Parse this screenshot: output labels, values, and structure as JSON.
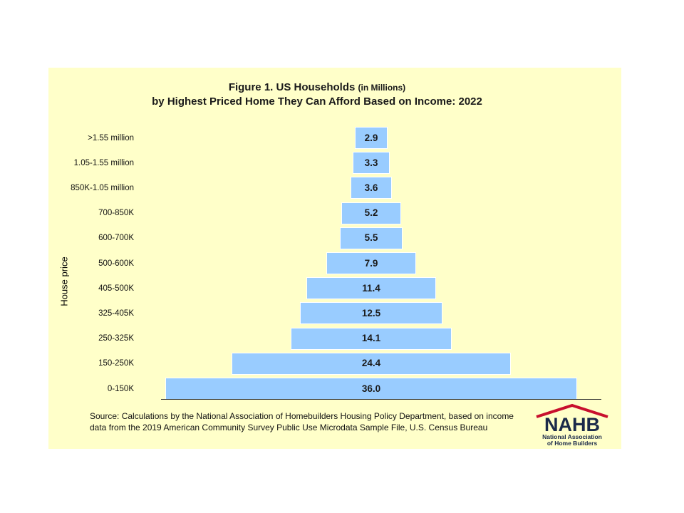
{
  "chart_data": {
    "type": "bar",
    "orientation": "horizontal-centered",
    "title": "Figure 1. US Households",
    "title_unit": "(in Millions)",
    "subtitle": "by Highest Priced Home They Can Afford Based on Income: 2022",
    "ylabel": "House price",
    "xlabel": "",
    "categories": [
      ">1.55 million",
      "1.05-1.55 million",
      "850K-1.05 million",
      "700-850K",
      "600-700K",
      "500-600K",
      "405-500K",
      "325-405K",
      "250-325K",
      "150-250K",
      "0-150K"
    ],
    "values": [
      2.9,
      3.3,
      3.6,
      5.2,
      5.5,
      7.9,
      11.4,
      12.5,
      14.1,
      24.4,
      36.0
    ],
    "value_labels": [
      "2.9",
      "3.3",
      "3.6",
      "5.2",
      "5.5",
      "7.9",
      "11.4",
      "12.5",
      "14.1",
      "24.4",
      "36.0"
    ],
    "bar_color": "#99ccff",
    "background_color": "#ffffc9",
    "grid": false,
    "legend": "none"
  },
  "source": "Source: Calculations by the National Association of Homebuilders Housing Policy Department, based on income data from the 2019 American Community Survey Public Use Microdata Sample File, U.S. Census Bureau",
  "logo": {
    "letters": "NAHB",
    "org_line1": "National Association",
    "org_line2": "of Home Builders",
    "navy": "#1b2a4a",
    "red": "#c8102e"
  }
}
